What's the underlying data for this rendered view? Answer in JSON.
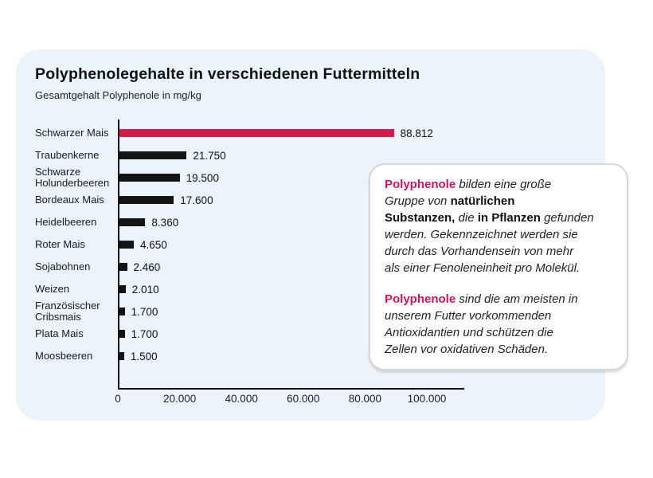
{
  "header": {
    "title": "Polyphenolegehalte in verschiedenen Futtermitteln",
    "subtitle": "Gesamtgehalt Polyphenole in mg/kg"
  },
  "colors": {
    "panel_bg": "#EBF4FA",
    "bar": "#141414",
    "highlight_bar": "#CE1E4D",
    "accent_text": "#D2125C",
    "card_border": "#D7D7D7"
  },
  "chart_data": {
    "type": "bar",
    "orientation": "horizontal",
    "title": "Polyphenolegehalte in verschiedenen Futtermitteln",
    "subtitle": "Gesamtgehalt Polyphenole in mg/kg",
    "xlabel": "",
    "ylabel": "",
    "xlim": [
      0,
      100000
    ],
    "grid": false,
    "legend": false,
    "highlight_index": 0,
    "categories": [
      "Schwarzer Mais",
      "Traubenkerne",
      "Schwarze Holunderbeeren",
      "Bordeaux Mais",
      "Heidelbeeren",
      "Roter Mais",
      "Sojabohnen",
      "Weizen",
      "Französischer Cribsmais",
      "Plata Mais",
      "Moosbeeren"
    ],
    "values": [
      88812,
      21750,
      19500,
      17600,
      8360,
      4650,
      2460,
      2010,
      1700,
      1700,
      1500
    ],
    "value_labels": [
      "88.812",
      "21.750",
      "19.500",
      "17.600",
      "8.360",
      "4.650",
      "2.460",
      "2.010",
      "1.700",
      "1.700",
      "1.500"
    ],
    "x_ticks": [
      "0",
      "20.000",
      "40.000",
      "60.000",
      "80.000",
      "100.000"
    ]
  },
  "infobox": {
    "paragraphs": [
      {
        "segments": [
          {
            "text": "Polyphenole",
            "style": "accent-bold"
          },
          {
            "text": " bilden eine große\nGruppe von ",
            "style": "italic"
          },
          {
            "text": "natürlichen\nSubstanzen,",
            "style": "bold"
          },
          {
            "text": " die ",
            "style": "italic"
          },
          {
            "text": "in Pflanzen",
            "style": "bold"
          },
          {
            "text": " gefunden\nwerden. Gekennzeichnet werden sie\ndurch das Vorhandensein von mehr\nals einer Fenoleneinheit pro Molekül.",
            "style": "italic"
          }
        ]
      },
      {
        "segments": [
          {
            "text": "Polyphenole",
            "style": "accent-bold"
          },
          {
            "text": " sind die am meisten in\nunserem Futter vorkommenden\nAntioxidantien und schützen die\nZellen vor oxidativen Schäden.",
            "style": "italic"
          }
        ]
      }
    ]
  }
}
